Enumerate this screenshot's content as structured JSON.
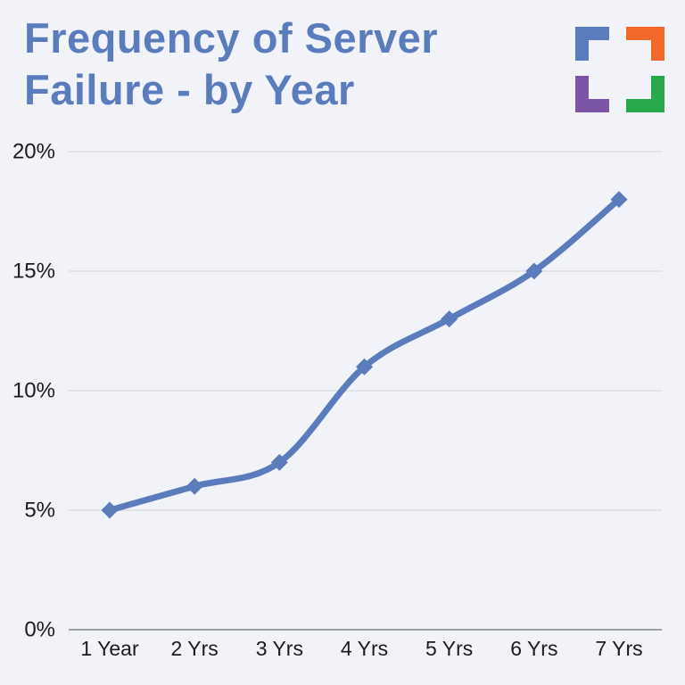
{
  "page": {
    "background_color": "#f2f3f8"
  },
  "header": {
    "title_line1": "Frequency of Server",
    "title_line2": "Failure - by Year",
    "title_color": "#5b7cbc"
  },
  "logo": {
    "description": "four corner bracket squares",
    "colors": {
      "top_left": "#5b7cbc",
      "top_right": "#f2682a",
      "bottom_left": "#7a55a6",
      "bottom_right": "#28a84c"
    }
  },
  "chart_data": {
    "type": "line",
    "title": "Frequency of Server Failure - by Year",
    "categories": [
      "1 Year",
      "2 Yrs",
      "3 Yrs",
      "4 Yrs",
      "5 Yrs",
      "6 Yrs",
      "7 Yrs"
    ],
    "values": [
      5,
      6,
      7,
      11,
      13,
      15,
      18
    ],
    "unit": "%",
    "ylim": [
      0,
      20
    ],
    "yticks": [
      0,
      5,
      10,
      15,
      20
    ],
    "ytick_labels": [
      "0%",
      "5%",
      "10%",
      "15%",
      "20%"
    ],
    "xlabel": "",
    "ylabel": "",
    "grid": true,
    "legend_position": "none",
    "smooth": true,
    "marker_shape": "diamond",
    "line_color": "#5b7cbc",
    "grid_color": "#d7d9de",
    "axis_color": "#9da0a6",
    "tick_label_color": "#1b1b1d"
  }
}
